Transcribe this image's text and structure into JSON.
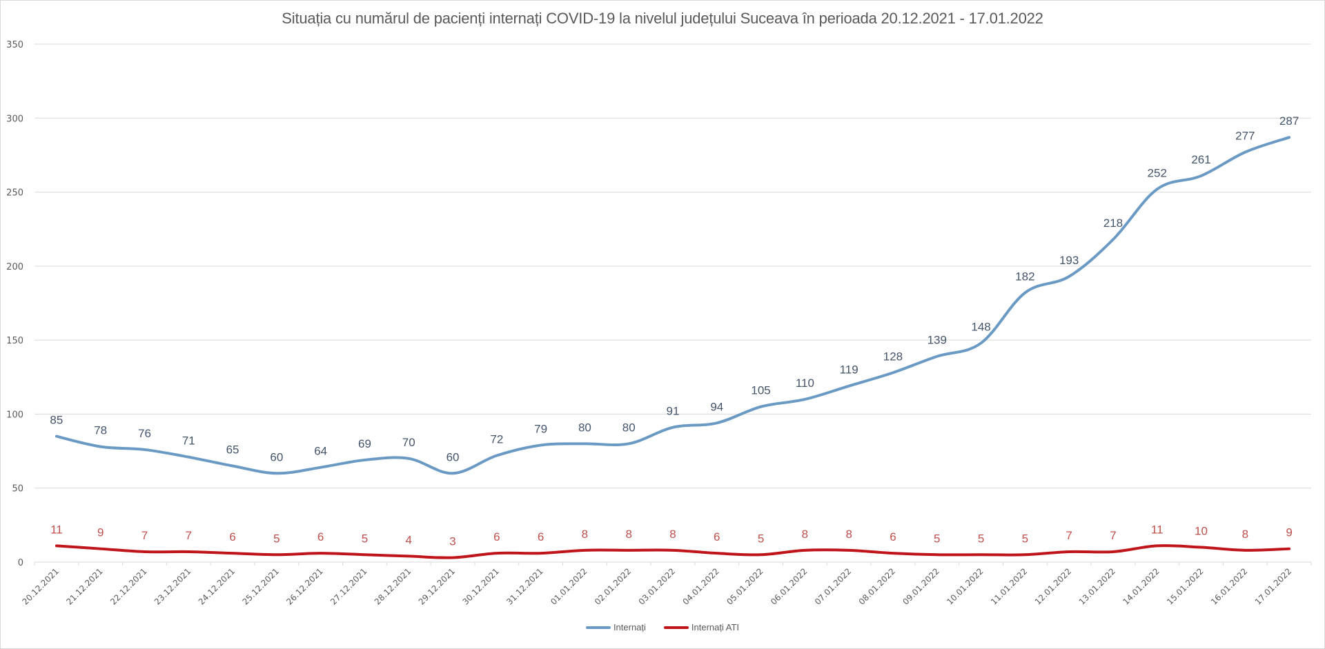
{
  "chart_data": {
    "type": "line",
    "title": "Situația cu numărul de pacienți internați COVID-19 la nivelul județului Suceava în perioada 20.12.2021 - 17.01.2022",
    "xlabel": "",
    "ylabel": "",
    "ylim": [
      0,
      350
    ],
    "yticks": [
      0,
      50,
      100,
      150,
      200,
      250,
      300,
      350
    ],
    "grid": true,
    "legend_position": "bottom",
    "smooth": true,
    "categories": [
      "20.12.2021",
      "21.12.2021",
      "22.12.2021",
      "23.12.2021",
      "24.12.2021",
      "25.12.2021",
      "26.12.2021",
      "27.12.2021",
      "28.12.2021",
      "29.12.2021",
      "30.12.2021",
      "31.12.2021",
      "01.01.2022",
      "02.01.2022",
      "03.01.2022",
      "04.01.2022",
      "05.01.2022",
      "06.01.2022",
      "07.01.2022",
      "08.01.2022",
      "09.01.2022",
      "10.01.2022",
      "11.01.2022",
      "12.01.2022",
      "13.01.2022",
      "14.01.2022",
      "15.01.2022",
      "16.01.2022",
      "17.01.2022"
    ],
    "series": [
      {
        "name": "Internați",
        "color": "#6a9ac4",
        "label_color": "#44546a",
        "values": [
          85,
          78,
          76,
          71,
          65,
          60,
          64,
          69,
          70,
          60,
          72,
          79,
          80,
          80,
          91,
          94,
          105,
          110,
          119,
          128,
          139,
          148,
          182,
          193,
          218,
          252,
          261,
          277,
          287
        ]
      },
      {
        "name": "Internați ATI",
        "color": "#c0141b",
        "label_color": "#c0504d",
        "values": [
          11,
          9,
          7,
          7,
          6,
          5,
          6,
          5,
          4,
          3,
          6,
          6,
          8,
          8,
          8,
          6,
          5,
          8,
          8,
          6,
          5,
          5,
          5,
          7,
          7,
          11,
          10,
          8,
          9
        ]
      }
    ]
  }
}
